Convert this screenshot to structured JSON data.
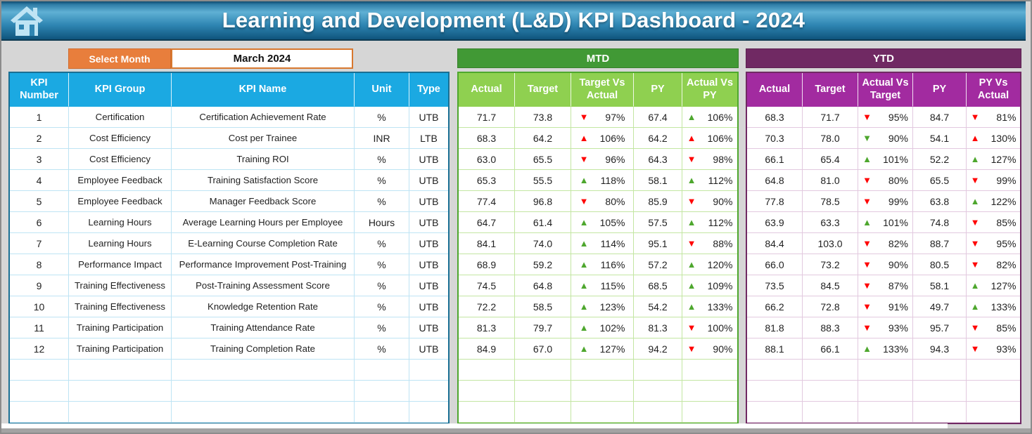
{
  "header": {
    "title": "Learning and Development (L&D) KPI Dashboard - 2024"
  },
  "controls": {
    "select_month_label": "Select Month",
    "selected_month": "March 2024"
  },
  "left_table": {
    "columns": [
      "KPI Number",
      "KPI Group",
      "KPI Name",
      "Unit",
      "Type"
    ]
  },
  "mtd": {
    "label": "MTD",
    "columns": [
      "Actual",
      "Target",
      "Target Vs Actual",
      "PY",
      "Actual Vs PY"
    ]
  },
  "ytd": {
    "label": "YTD",
    "columns": [
      "Actual",
      "Target",
      "Actual Vs Target",
      "PY",
      "PY Vs Actual"
    ]
  },
  "empty_rows": 3,
  "colors": {
    "title_bar_blue": "#2f86b3",
    "table_header_blue": "#1ba9e2",
    "select_month_orange": "#e87e3c",
    "mtd_banner_green": "#419935",
    "mtd_header_green": "#8fd050",
    "ytd_banner_purple": "#702963",
    "ytd_header_purple": "#a22ba0",
    "arrow_red": "#ff0000",
    "arrow_green": "#4ea72e"
  },
  "rows": [
    {
      "kpi_number": "1",
      "kpi_group": "Certification",
      "kpi_name": "Certification Achievement Rate",
      "unit": "%",
      "type": "UTB",
      "mtd": {
        "actual": "71.7",
        "target": "73.8",
        "target_vs_actual": {
          "arrow": "down",
          "color": "red",
          "value": "97%"
        },
        "py": "67.4",
        "actual_vs_py": {
          "arrow": "up",
          "color": "green",
          "value": "106%"
        }
      },
      "ytd": {
        "actual": "68.3",
        "target": "71.7",
        "actual_vs_target": {
          "arrow": "down",
          "color": "red",
          "value": "95%"
        },
        "py": "84.7",
        "py_vs_actual": {
          "arrow": "down",
          "color": "red",
          "value": "81%"
        }
      }
    },
    {
      "kpi_number": "2",
      "kpi_group": "Cost Efficiency",
      "kpi_name": "Cost per Trainee",
      "unit": "INR",
      "type": "LTB",
      "mtd": {
        "actual": "68.3",
        "target": "64.2",
        "target_vs_actual": {
          "arrow": "up",
          "color": "red",
          "value": "106%"
        },
        "py": "64.2",
        "actual_vs_py": {
          "arrow": "up",
          "color": "red",
          "value": "106%"
        }
      },
      "ytd": {
        "actual": "70.3",
        "target": "78.0",
        "actual_vs_target": {
          "arrow": "down",
          "color": "green",
          "value": "90%"
        },
        "py": "54.1",
        "py_vs_actual": {
          "arrow": "up",
          "color": "red",
          "value": "130%"
        }
      }
    },
    {
      "kpi_number": "3",
      "kpi_group": "Cost Efficiency",
      "kpi_name": "Training ROI",
      "unit": "%",
      "type": "UTB",
      "mtd": {
        "actual": "63.0",
        "target": "65.5",
        "target_vs_actual": {
          "arrow": "down",
          "color": "red",
          "value": "96%"
        },
        "py": "64.3",
        "actual_vs_py": {
          "arrow": "down",
          "color": "red",
          "value": "98%"
        }
      },
      "ytd": {
        "actual": "66.1",
        "target": "65.4",
        "actual_vs_target": {
          "arrow": "up",
          "color": "green",
          "value": "101%"
        },
        "py": "52.2",
        "py_vs_actual": {
          "arrow": "up",
          "color": "green",
          "value": "127%"
        }
      }
    },
    {
      "kpi_number": "4",
      "kpi_group": "Employee Feedback",
      "kpi_name": "Training Satisfaction Score",
      "unit": "%",
      "type": "UTB",
      "mtd": {
        "actual": "65.3",
        "target": "55.5",
        "target_vs_actual": {
          "arrow": "up",
          "color": "green",
          "value": "118%"
        },
        "py": "58.1",
        "actual_vs_py": {
          "arrow": "up",
          "color": "green",
          "value": "112%"
        }
      },
      "ytd": {
        "actual": "64.8",
        "target": "81.0",
        "actual_vs_target": {
          "arrow": "down",
          "color": "red",
          "value": "80%"
        },
        "py": "65.5",
        "py_vs_actual": {
          "arrow": "down",
          "color": "red",
          "value": "99%"
        }
      }
    },
    {
      "kpi_number": "5",
      "kpi_group": "Employee Feedback",
      "kpi_name": "Manager Feedback Score",
      "unit": "%",
      "type": "UTB",
      "mtd": {
        "actual": "77.4",
        "target": "96.8",
        "target_vs_actual": {
          "arrow": "down",
          "color": "red",
          "value": "80%"
        },
        "py": "85.9",
        "actual_vs_py": {
          "arrow": "down",
          "color": "red",
          "value": "90%"
        }
      },
      "ytd": {
        "actual": "77.8",
        "target": "78.5",
        "actual_vs_target": {
          "arrow": "down",
          "color": "red",
          "value": "99%"
        },
        "py": "63.8",
        "py_vs_actual": {
          "arrow": "up",
          "color": "green",
          "value": "122%"
        }
      }
    },
    {
      "kpi_number": "6",
      "kpi_group": "Learning Hours",
      "kpi_name": "Average Learning Hours per Employee",
      "unit": "Hours",
      "type": "UTB",
      "mtd": {
        "actual": "64.7",
        "target": "61.4",
        "target_vs_actual": {
          "arrow": "up",
          "color": "green",
          "value": "105%"
        },
        "py": "57.5",
        "actual_vs_py": {
          "arrow": "up",
          "color": "green",
          "value": "112%"
        }
      },
      "ytd": {
        "actual": "63.9",
        "target": "63.3",
        "actual_vs_target": {
          "arrow": "up",
          "color": "green",
          "value": "101%"
        },
        "py": "74.8",
        "py_vs_actual": {
          "arrow": "down",
          "color": "red",
          "value": "85%"
        }
      }
    },
    {
      "kpi_number": "7",
      "kpi_group": "Learning Hours",
      "kpi_name": "E-Learning Course Completion Rate",
      "unit": "%",
      "type": "UTB",
      "mtd": {
        "actual": "84.1",
        "target": "74.0",
        "target_vs_actual": {
          "arrow": "up",
          "color": "green",
          "value": "114%"
        },
        "py": "95.1",
        "actual_vs_py": {
          "arrow": "down",
          "color": "red",
          "value": "88%"
        }
      },
      "ytd": {
        "actual": "84.4",
        "target": "103.0",
        "actual_vs_target": {
          "arrow": "down",
          "color": "red",
          "value": "82%"
        },
        "py": "88.7",
        "py_vs_actual": {
          "arrow": "down",
          "color": "red",
          "value": "95%"
        }
      }
    },
    {
      "kpi_number": "8",
      "kpi_group": "Performance Impact",
      "kpi_name": "Performance Improvement Post-Training",
      "unit": "%",
      "type": "UTB",
      "mtd": {
        "actual": "68.9",
        "target": "59.2",
        "target_vs_actual": {
          "arrow": "up",
          "color": "green",
          "value": "116%"
        },
        "py": "57.2",
        "actual_vs_py": {
          "arrow": "up",
          "color": "green",
          "value": "120%"
        }
      },
      "ytd": {
        "actual": "66.0",
        "target": "73.2",
        "actual_vs_target": {
          "arrow": "down",
          "color": "red",
          "value": "90%"
        },
        "py": "80.5",
        "py_vs_actual": {
          "arrow": "down",
          "color": "red",
          "value": "82%"
        }
      }
    },
    {
      "kpi_number": "9",
      "kpi_group": "Training Effectiveness",
      "kpi_name": "Post-Training Assessment Score",
      "unit": "%",
      "type": "UTB",
      "mtd": {
        "actual": "74.5",
        "target": "64.8",
        "target_vs_actual": {
          "arrow": "up",
          "color": "green",
          "value": "115%"
        },
        "py": "68.5",
        "actual_vs_py": {
          "arrow": "up",
          "color": "green",
          "value": "109%"
        }
      },
      "ytd": {
        "actual": "73.5",
        "target": "84.5",
        "actual_vs_target": {
          "arrow": "down",
          "color": "red",
          "value": "87%"
        },
        "py": "58.1",
        "py_vs_actual": {
          "arrow": "up",
          "color": "green",
          "value": "127%"
        }
      }
    },
    {
      "kpi_number": "10",
      "kpi_group": "Training Effectiveness",
      "kpi_name": "Knowledge Retention Rate",
      "unit": "%",
      "type": "UTB",
      "mtd": {
        "actual": "72.2",
        "target": "58.5",
        "target_vs_actual": {
          "arrow": "up",
          "color": "green",
          "value": "123%"
        },
        "py": "54.2",
        "actual_vs_py": {
          "arrow": "up",
          "color": "green",
          "value": "133%"
        }
      },
      "ytd": {
        "actual": "66.2",
        "target": "72.8",
        "actual_vs_target": {
          "arrow": "down",
          "color": "red",
          "value": "91%"
        },
        "py": "49.7",
        "py_vs_actual": {
          "arrow": "up",
          "color": "green",
          "value": "133%"
        }
      }
    },
    {
      "kpi_number": "11",
      "kpi_group": "Training Participation",
      "kpi_name": "Training Attendance Rate",
      "unit": "%",
      "type": "UTB",
      "mtd": {
        "actual": "81.3",
        "target": "79.7",
        "target_vs_actual": {
          "arrow": "up",
          "color": "green",
          "value": "102%"
        },
        "py": "81.3",
        "actual_vs_py": {
          "arrow": "down",
          "color": "red",
          "value": "100%"
        }
      },
      "ytd": {
        "actual": "81.8",
        "target": "88.3",
        "actual_vs_target": {
          "arrow": "down",
          "color": "red",
          "value": "93%"
        },
        "py": "95.7",
        "py_vs_actual": {
          "arrow": "down",
          "color": "red",
          "value": "85%"
        }
      }
    },
    {
      "kpi_number": "12",
      "kpi_group": "Training Participation",
      "kpi_name": "Training Completion Rate",
      "unit": "%",
      "type": "UTB",
      "mtd": {
        "actual": "84.9",
        "target": "67.0",
        "target_vs_actual": {
          "arrow": "up",
          "color": "green",
          "value": "127%"
        },
        "py": "94.2",
        "actual_vs_py": {
          "arrow": "down",
          "color": "red",
          "value": "90%"
        }
      },
      "ytd": {
        "actual": "88.1",
        "target": "66.1",
        "actual_vs_target": {
          "arrow": "up",
          "color": "green",
          "value": "133%"
        },
        "py": "94.3",
        "py_vs_actual": {
          "arrow": "down",
          "color": "red",
          "value": "93%"
        }
      }
    }
  ]
}
